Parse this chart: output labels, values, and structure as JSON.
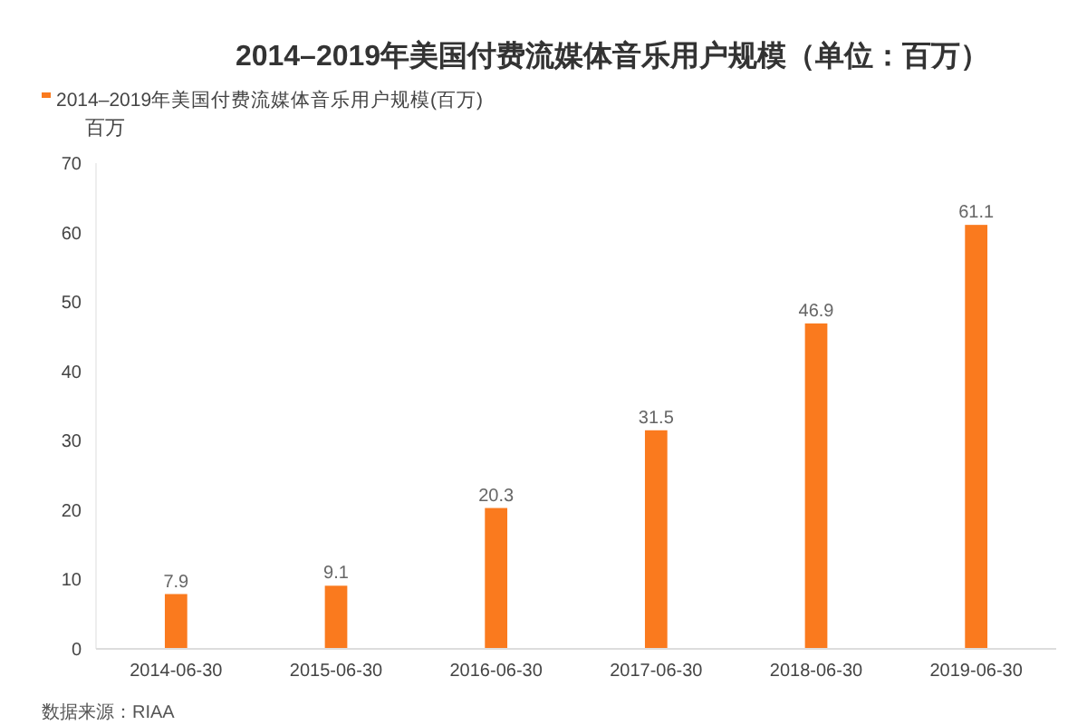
{
  "chart_data": {
    "type": "bar",
    "title": "2014–2019年美国付费流媒体音乐用户规模（单位：百万）",
    "ylabel": "百万",
    "categories": [
      "2014-06-30",
      "2015-06-30",
      "2016-06-30",
      "2017-06-30",
      "2018-06-30",
      "2019-06-30"
    ],
    "series": [
      {
        "name": "2014–2019年美国付费流媒体音乐用户规模(百万)",
        "color": "#fa7a1e",
        "values": [
          7.9,
          9.1,
          20.3,
          31.5,
          46.9,
          61.1
        ]
      }
    ],
    "ylim": [
      0,
      70
    ],
    "yticks": [
      0,
      10,
      20,
      30,
      40,
      50,
      60,
      70
    ],
    "data_labels": true,
    "legend": "top left",
    "annotations": [
      "数据来源：RIAA"
    ]
  }
}
